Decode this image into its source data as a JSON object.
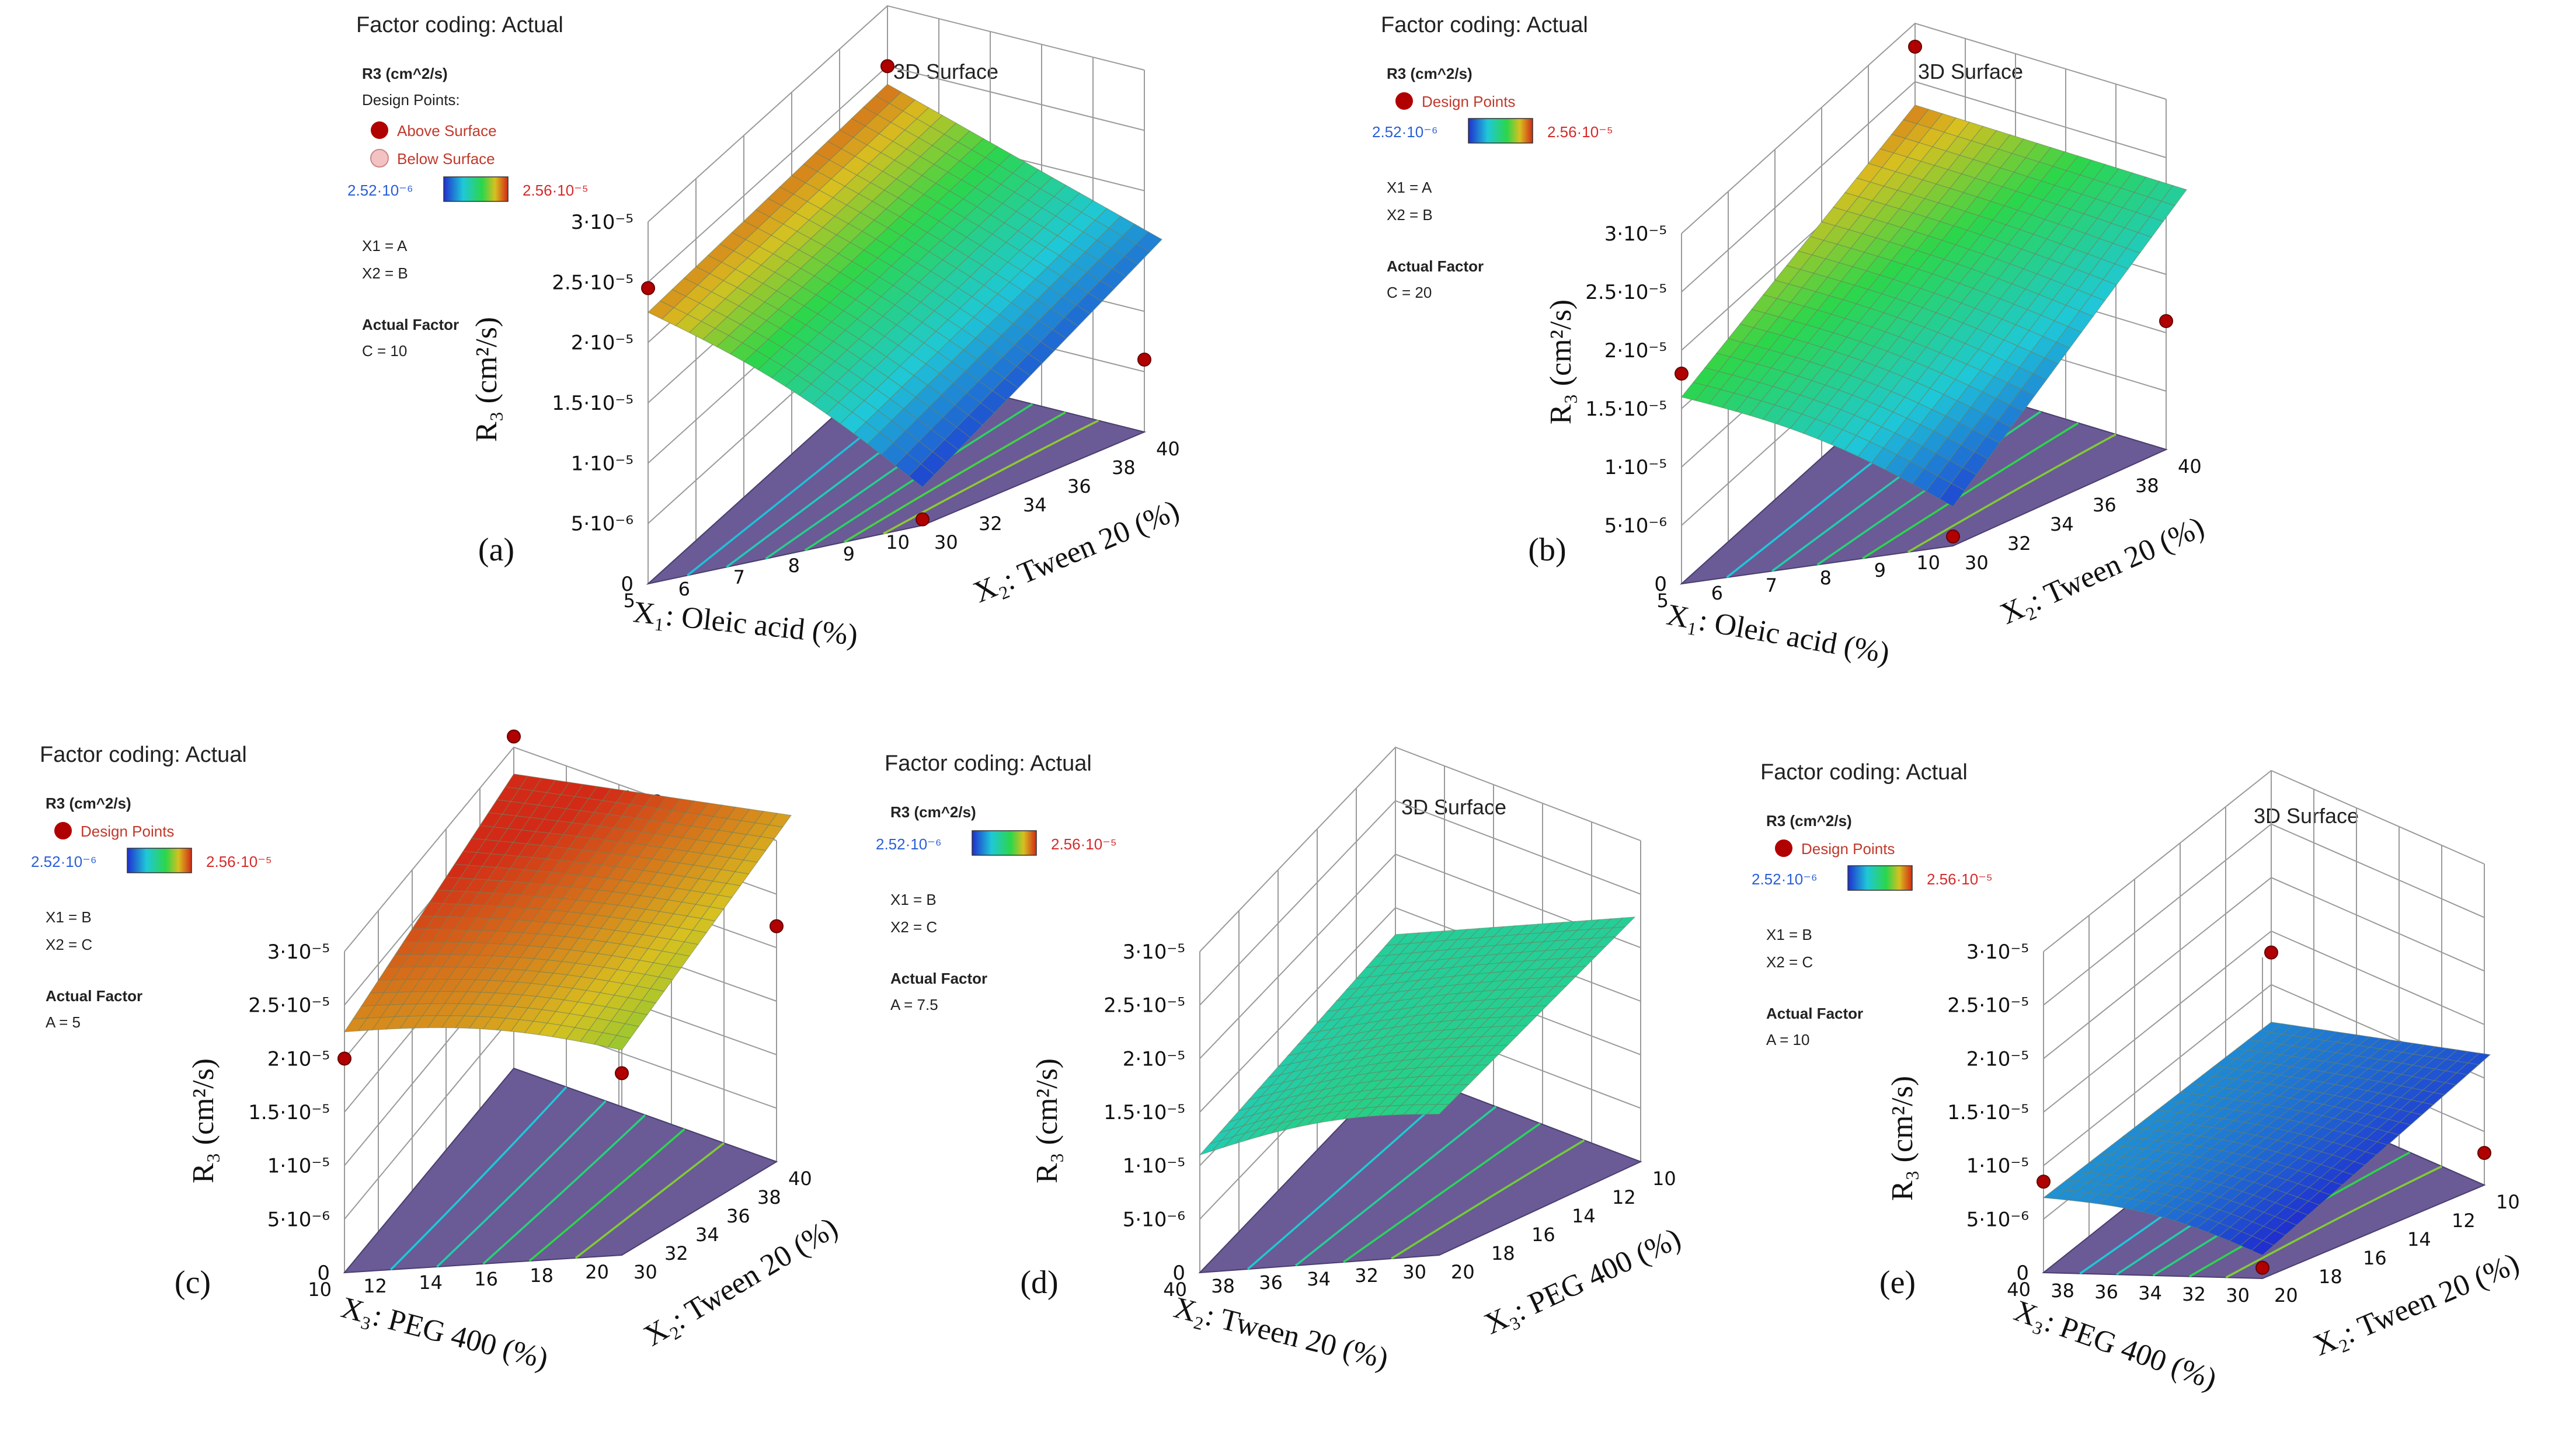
{
  "common": {
    "factor_coding": "Factor coding: Actual",
    "response_title": "R3 (cm^2/s)",
    "surface_title": "3D Surface",
    "design_points_label": "Design Points",
    "design_points_label_colon": "Design Points:",
    "above_surface": "Above Surface",
    "below_surface": "Below Surface",
    "legend_low": "2.52·10⁻⁶",
    "legend_high": "2.56·10⁻⁵",
    "actual_factor": "Actual Factor",
    "y_axis_label": "R₃ (cm²/s)",
    "y_ticks": [
      "0",
      "5·10⁻⁶",
      "1·10⁻⁵",
      "1.5·10⁻⁵",
      "2·10⁻⁵",
      "2.5·10⁻⁵",
      "3·10⁻⁵"
    ]
  },
  "colors": {
    "low": "#1f2fd0",
    "mid": "#2cd64a",
    "high": "#d24a16",
    "point": "#b00000",
    "floor": "#6a5a96"
  },
  "chart_data": [
    {
      "panel": "(a)",
      "type": "surface3d",
      "factor1": "X1 = A",
      "factor2": "X2 = B",
      "actual_factor_value": "C = 10",
      "x1_label": "X₁: Oleic acid (%)",
      "x2_label": "X₂: Tween 20 (%)",
      "x1_ticks": [
        "5",
        "6",
        "7",
        "8",
        "9",
        "10"
      ],
      "x2_ticks": [
        "30",
        "32",
        "34",
        "36",
        "38",
        "40"
      ],
      "x1_range": [
        5,
        10
      ],
      "x2_range": [
        30,
        40
      ],
      "ylim": [
        0,
        3e-05
      ],
      "corner_values": [
        2.25e-05,
        2.35e-05,
        3e-06,
        5.8e-06
      ],
      "design_points": [
        2.45e-05,
        2.5e-05,
        5e-07,
        6e-06
      ],
      "contour_count": 6,
      "legend_style": "above_below"
    },
    {
      "panel": "(b)",
      "type": "surface3d",
      "factor1": "X1 = A",
      "factor2": "X2 = B",
      "actual_factor_value": "C = 20",
      "x1_label": "X₁: Oleic acid (%)",
      "x2_label": "X₂: Tween 20 (%)",
      "x1_ticks": [
        "5",
        "6",
        "7",
        "8",
        "9",
        "10"
      ],
      "x2_ticks": [
        "30",
        "32",
        "34",
        "36",
        "38",
        "40"
      ],
      "x1_range": [
        5,
        10
      ],
      "x2_range": [
        30,
        40
      ],
      "ylim": [
        0,
        3e-05
      ],
      "corner_values": [
        1.6e-05,
        2.3e-05,
        3.2e-06,
        1.25e-05
      ],
      "design_points": [
        1.8e-05,
        2.8e-05,
        8e-07,
        1.1e-05
      ],
      "contour_count": 5,
      "legend_style": "simple"
    },
    {
      "panel": "(c)",
      "type": "surface3d",
      "factor1": "X1 = B",
      "factor2": "X2 = C",
      "actual_factor_value": "A = 5",
      "x1_label": "X₃: PEG 400 (%)",
      "x2_label": "X₂: Tween 20 (%)",
      "x1_ticks": [
        "10",
        "12",
        "14",
        "16",
        "18",
        "20"
      ],
      "x2_ticks": [
        "30",
        "32",
        "34",
        "36",
        "38",
        "40"
      ],
      "x1_range": [
        10,
        20
      ],
      "x2_range": [
        30,
        40
      ],
      "ylim": [
        0,
        3e-05
      ],
      "corner_values": [
        2.25e-05,
        2.75e-05,
        1.9e-05,
        2.2e-05
      ],
      "design_points": [
        2e-05,
        3.1e-05,
        1.7e-05,
        2.2e-05
      ],
      "contour_count": 5,
      "legend_style": "simple"
    },
    {
      "panel": "(d)",
      "type": "surface3d",
      "factor1": "X1 = B",
      "factor2": "X2 = C",
      "actual_factor_value": "A = 7.5",
      "x1_label": "X₂: Tween 20 (%)",
      "x2_label": "X₃: PEG 400 (%)",
      "x1_ticks": [
        "40",
        "38",
        "36",
        "34",
        "32",
        "30"
      ],
      "x2_ticks": [
        "20",
        "18",
        "16",
        "14",
        "12",
        "10"
      ],
      "x1_range": [
        40,
        30
      ],
      "x2_range": [
        20,
        10
      ],
      "ylim": [
        0,
        3e-05
      ],
      "corner_values": [
        1.1e-05,
        1.25e-05,
        1.3e-05,
        1.25e-05
      ],
      "design_points": [],
      "contour_count": 4,
      "legend_style": "none"
    },
    {
      "panel": "(e)",
      "type": "surface3d",
      "factor1": "X1 = B",
      "factor2": "X2 = C",
      "actual_factor_value": "A = 10",
      "x1_label": "X₃: PEG 400 (%)",
      "x2_label": "X₂: Tween 20 (%)",
      "x1_ticks": [
        "40",
        "38",
        "36",
        "34",
        "32",
        "30"
      ],
      "x2_ticks": [
        "20",
        "18",
        "16",
        "14",
        "12",
        "10"
      ],
      "x1_range": [
        40,
        30
      ],
      "x2_range": [
        20,
        10
      ],
      "ylim": [
        0,
        3e-05
      ],
      "corner_values": [
        7e-06,
        6.5e-06,
        2e-06,
        4e-06
      ],
      "design_points": [
        8.5e-06,
        1.3e-05,
        1e-06,
        3e-06
      ],
      "contour_count": 5,
      "legend_style": "simple"
    }
  ]
}
